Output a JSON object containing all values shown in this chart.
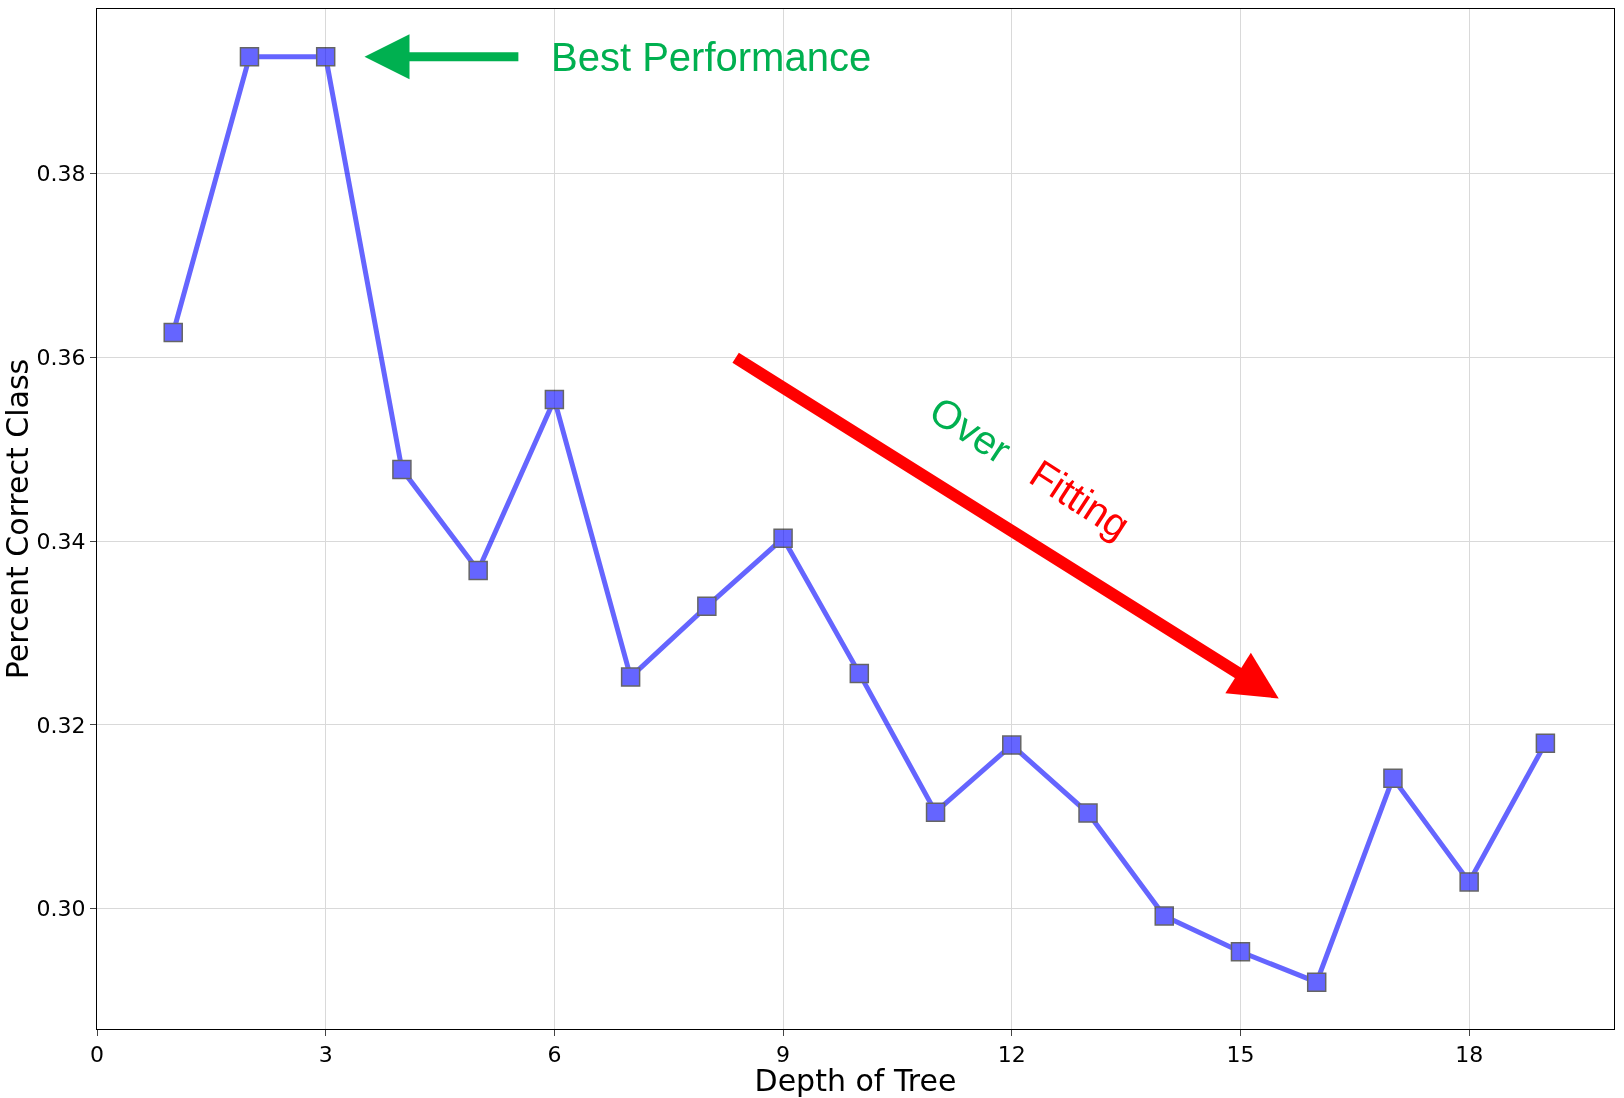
{
  "chart_data": {
    "type": "line",
    "xlabel": "Depth of Tree",
    "ylabel": "Percent Correct Class",
    "x": [
      1,
      2,
      3,
      4,
      5,
      6,
      7,
      8,
      9,
      10,
      11,
      12,
      13,
      14,
      15,
      16,
      17,
      18,
      19
    ],
    "series": [
      {
        "color": "#0000ff",
        "values": [
          0.3627,
          0.3927,
          0.3927,
          0.3478,
          0.3368,
          0.3554,
          0.3252,
          0.3329,
          0.3403,
          0.3256,
          0.3105,
          0.3178,
          0.3104,
          0.2992,
          0.2953,
          0.292,
          0.3142,
          0.3029,
          0.318
        ]
      }
    ],
    "marker": "square",
    "line_style": "solid",
    "grid": true,
    "legend": false,
    "xlim": [
      0,
      19.9
    ],
    "ylim": [
      0.2869,
      0.3979
    ],
    "xticks": [
      0,
      3,
      6,
      9,
      12,
      15,
      18
    ],
    "yticks": [
      {
        "value": 0.3,
        "label": "0.30"
      },
      {
        "value": 0.32,
        "label": "0.32"
      },
      {
        "value": 0.34,
        "label": "0.34"
      },
      {
        "value": 0.36,
        "label": "0.36"
      },
      {
        "value": 0.38,
        "label": "0.38"
      }
    ],
    "annotations": [
      "Best Performance",
      "Over",
      "Fitting"
    ]
  }
}
